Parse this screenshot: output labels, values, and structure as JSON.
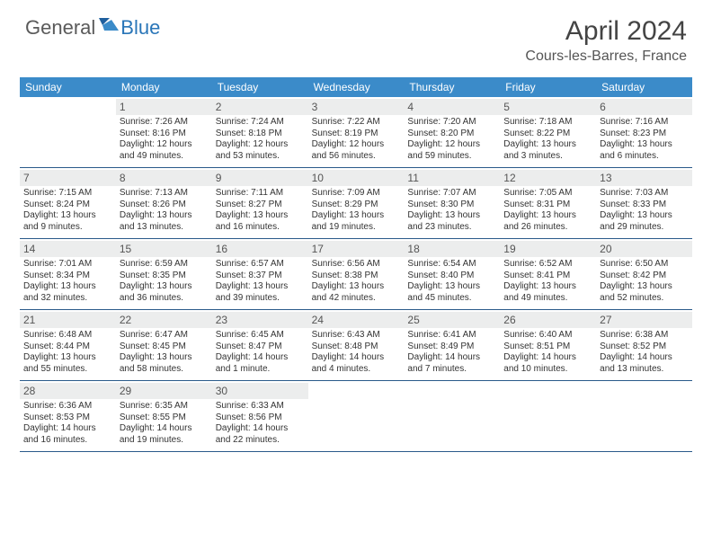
{
  "brand": {
    "part1": "General",
    "part2": "Blue"
  },
  "title": "April 2024",
  "location": "Cours-les-Barres, France",
  "colors": {
    "header_bg": "#3b8bc9",
    "header_text": "#ffffff",
    "daynum_bg": "#eceded",
    "border": "#2a5a8a",
    "brand_gray": "#5a5a5a",
    "brand_blue": "#2a76b8"
  },
  "typography": {
    "title_fontsize": 30,
    "location_fontsize": 16,
    "dayheader_fontsize": 12,
    "daynum_fontsize": 12,
    "detail_fontsize": 10
  },
  "day_names": [
    "Sunday",
    "Monday",
    "Tuesday",
    "Wednesday",
    "Thursday",
    "Friday",
    "Saturday"
  ],
  "weeks": [
    [
      {
        "n": "",
        "sr": "",
        "ss": "",
        "dl": ""
      },
      {
        "n": "1",
        "sr": "Sunrise: 7:26 AM",
        "ss": "Sunset: 8:16 PM",
        "dl": "Daylight: 12 hours and 49 minutes."
      },
      {
        "n": "2",
        "sr": "Sunrise: 7:24 AM",
        "ss": "Sunset: 8:18 PM",
        "dl": "Daylight: 12 hours and 53 minutes."
      },
      {
        "n": "3",
        "sr": "Sunrise: 7:22 AM",
        "ss": "Sunset: 8:19 PM",
        "dl": "Daylight: 12 hours and 56 minutes."
      },
      {
        "n": "4",
        "sr": "Sunrise: 7:20 AM",
        "ss": "Sunset: 8:20 PM",
        "dl": "Daylight: 12 hours and 59 minutes."
      },
      {
        "n": "5",
        "sr": "Sunrise: 7:18 AM",
        "ss": "Sunset: 8:22 PM",
        "dl": "Daylight: 13 hours and 3 minutes."
      },
      {
        "n": "6",
        "sr": "Sunrise: 7:16 AM",
        "ss": "Sunset: 8:23 PM",
        "dl": "Daylight: 13 hours and 6 minutes."
      }
    ],
    [
      {
        "n": "7",
        "sr": "Sunrise: 7:15 AM",
        "ss": "Sunset: 8:24 PM",
        "dl": "Daylight: 13 hours and 9 minutes."
      },
      {
        "n": "8",
        "sr": "Sunrise: 7:13 AM",
        "ss": "Sunset: 8:26 PM",
        "dl": "Daylight: 13 hours and 13 minutes."
      },
      {
        "n": "9",
        "sr": "Sunrise: 7:11 AM",
        "ss": "Sunset: 8:27 PM",
        "dl": "Daylight: 13 hours and 16 minutes."
      },
      {
        "n": "10",
        "sr": "Sunrise: 7:09 AM",
        "ss": "Sunset: 8:29 PM",
        "dl": "Daylight: 13 hours and 19 minutes."
      },
      {
        "n": "11",
        "sr": "Sunrise: 7:07 AM",
        "ss": "Sunset: 8:30 PM",
        "dl": "Daylight: 13 hours and 23 minutes."
      },
      {
        "n": "12",
        "sr": "Sunrise: 7:05 AM",
        "ss": "Sunset: 8:31 PM",
        "dl": "Daylight: 13 hours and 26 minutes."
      },
      {
        "n": "13",
        "sr": "Sunrise: 7:03 AM",
        "ss": "Sunset: 8:33 PM",
        "dl": "Daylight: 13 hours and 29 minutes."
      }
    ],
    [
      {
        "n": "14",
        "sr": "Sunrise: 7:01 AM",
        "ss": "Sunset: 8:34 PM",
        "dl": "Daylight: 13 hours and 32 minutes."
      },
      {
        "n": "15",
        "sr": "Sunrise: 6:59 AM",
        "ss": "Sunset: 8:35 PM",
        "dl": "Daylight: 13 hours and 36 minutes."
      },
      {
        "n": "16",
        "sr": "Sunrise: 6:57 AM",
        "ss": "Sunset: 8:37 PM",
        "dl": "Daylight: 13 hours and 39 minutes."
      },
      {
        "n": "17",
        "sr": "Sunrise: 6:56 AM",
        "ss": "Sunset: 8:38 PM",
        "dl": "Daylight: 13 hours and 42 minutes."
      },
      {
        "n": "18",
        "sr": "Sunrise: 6:54 AM",
        "ss": "Sunset: 8:40 PM",
        "dl": "Daylight: 13 hours and 45 minutes."
      },
      {
        "n": "19",
        "sr": "Sunrise: 6:52 AM",
        "ss": "Sunset: 8:41 PM",
        "dl": "Daylight: 13 hours and 49 minutes."
      },
      {
        "n": "20",
        "sr": "Sunrise: 6:50 AM",
        "ss": "Sunset: 8:42 PM",
        "dl": "Daylight: 13 hours and 52 minutes."
      }
    ],
    [
      {
        "n": "21",
        "sr": "Sunrise: 6:48 AM",
        "ss": "Sunset: 8:44 PM",
        "dl": "Daylight: 13 hours and 55 minutes."
      },
      {
        "n": "22",
        "sr": "Sunrise: 6:47 AM",
        "ss": "Sunset: 8:45 PM",
        "dl": "Daylight: 13 hours and 58 minutes."
      },
      {
        "n": "23",
        "sr": "Sunrise: 6:45 AM",
        "ss": "Sunset: 8:47 PM",
        "dl": "Daylight: 14 hours and 1 minute."
      },
      {
        "n": "24",
        "sr": "Sunrise: 6:43 AM",
        "ss": "Sunset: 8:48 PM",
        "dl": "Daylight: 14 hours and 4 minutes."
      },
      {
        "n": "25",
        "sr": "Sunrise: 6:41 AM",
        "ss": "Sunset: 8:49 PM",
        "dl": "Daylight: 14 hours and 7 minutes."
      },
      {
        "n": "26",
        "sr": "Sunrise: 6:40 AM",
        "ss": "Sunset: 8:51 PM",
        "dl": "Daylight: 14 hours and 10 minutes."
      },
      {
        "n": "27",
        "sr": "Sunrise: 6:38 AM",
        "ss": "Sunset: 8:52 PM",
        "dl": "Daylight: 14 hours and 13 minutes."
      }
    ],
    [
      {
        "n": "28",
        "sr": "Sunrise: 6:36 AM",
        "ss": "Sunset: 8:53 PM",
        "dl": "Daylight: 14 hours and 16 minutes."
      },
      {
        "n": "29",
        "sr": "Sunrise: 6:35 AM",
        "ss": "Sunset: 8:55 PM",
        "dl": "Daylight: 14 hours and 19 minutes."
      },
      {
        "n": "30",
        "sr": "Sunrise: 6:33 AM",
        "ss": "Sunset: 8:56 PM",
        "dl": "Daylight: 14 hours and 22 minutes."
      },
      {
        "n": "",
        "sr": "",
        "ss": "",
        "dl": ""
      },
      {
        "n": "",
        "sr": "",
        "ss": "",
        "dl": ""
      },
      {
        "n": "",
        "sr": "",
        "ss": "",
        "dl": ""
      },
      {
        "n": "",
        "sr": "",
        "ss": "",
        "dl": ""
      }
    ]
  ]
}
